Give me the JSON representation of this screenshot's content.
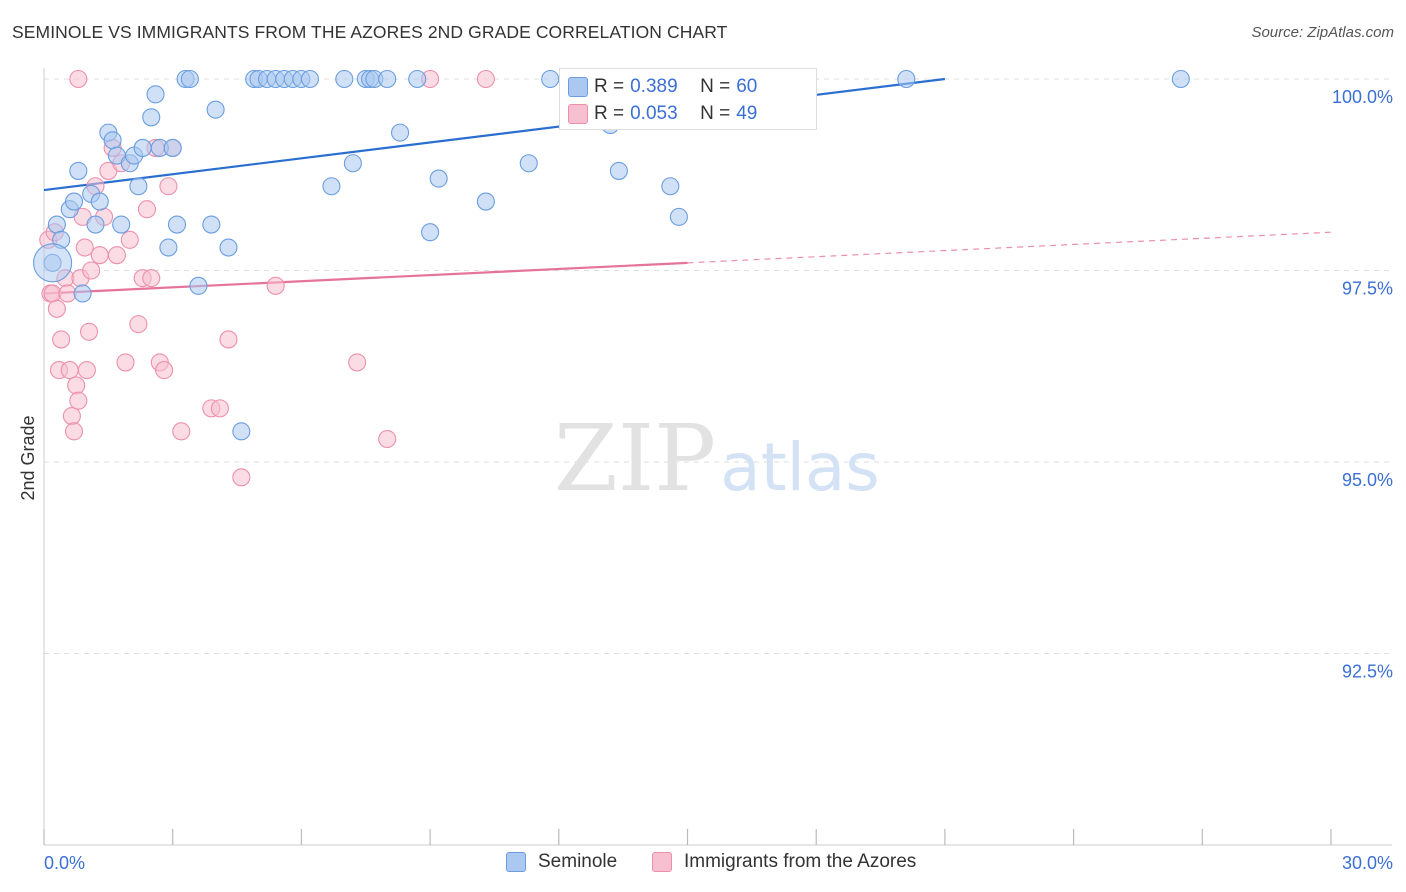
{
  "title": "SEMINOLE VS IMMIGRANTS FROM THE AZORES 2ND GRADE CORRELATION CHART",
  "source": "Source: ZipAtlas.com",
  "watermark": {
    "zip": "ZIP",
    "atlas": "atlas"
  },
  "stats": {
    "seminole": {
      "r_label": "R = ",
      "r_value": "0.389",
      "n_label": "N = ",
      "n_value": "60"
    },
    "azores": {
      "r_label": "R = ",
      "r_value": "0.053",
      "n_label": "N = ",
      "n_value": "49"
    }
  },
  "legend": {
    "seminole": "Seminole",
    "azores": "Immigrants from the Azores"
  },
  "chart_data": {
    "type": "scatter",
    "ylabel": "2nd Grade",
    "xlim": [
      0,
      30
    ],
    "ylim": [
      90.0,
      100.55
    ],
    "x_tick_labels": [
      {
        "value": 0,
        "label": "0.0%"
      },
      {
        "value": 30,
        "label": "30.0%"
      }
    ],
    "y_tick_labels": [
      {
        "value": 100.0,
        "label": "100.0%"
      },
      {
        "value": 97.5,
        "label": "97.5%"
      },
      {
        "value": 95.0,
        "label": "95.0%"
      },
      {
        "value": 92.5,
        "label": "92.5%"
      }
    ],
    "x_minor_ticks": [
      0,
      3,
      6,
      9,
      12,
      15,
      18,
      21,
      24,
      27,
      30
    ],
    "grid": true,
    "colors": {
      "seminole_fill": "#aac8f0",
      "seminole_stroke": "#6a9ee0",
      "seminole_line": "#2a6fd0",
      "azores_fill": "#f7c0d0",
      "azores_stroke": "#ec90ac",
      "azores_line": "#e5739a",
      "grid": "#dddddd",
      "tick_label": "#3b6fd4"
    },
    "series": [
      {
        "name": "Seminole",
        "color": "#aac8f0",
        "points": [
          [
            0.2,
            97.6
          ],
          [
            0.3,
            98.1
          ],
          [
            0.4,
            97.9
          ],
          [
            0.6,
            98.3
          ],
          [
            0.7,
            98.4
          ],
          [
            0.8,
            98.8
          ],
          [
            0.9,
            97.2
          ],
          [
            1.1,
            98.5
          ],
          [
            1.2,
            98.1
          ],
          [
            1.3,
            98.4
          ],
          [
            1.5,
            99.3
          ],
          [
            1.6,
            99.2
          ],
          [
            1.7,
            99.0
          ],
          [
            1.8,
            98.1
          ],
          [
            2.0,
            98.9
          ],
          [
            2.1,
            99.0
          ],
          [
            2.2,
            98.6
          ],
          [
            2.3,
            99.1
          ],
          [
            2.5,
            99.5
          ],
          [
            2.6,
            99.8
          ],
          [
            2.7,
            99.1
          ],
          [
            2.9,
            97.8
          ],
          [
            3.0,
            99.1
          ],
          [
            3.1,
            98.1
          ],
          [
            3.3,
            100.0
          ],
          [
            3.4,
            100.0
          ],
          [
            3.6,
            97.3
          ],
          [
            3.9,
            98.1
          ],
          [
            4.0,
            99.6
          ],
          [
            4.3,
            97.8
          ],
          [
            4.6,
            95.4
          ],
          [
            4.9,
            100.0
          ],
          [
            5.0,
            100.0
          ],
          [
            5.2,
            100.0
          ],
          [
            5.4,
            100.0
          ],
          [
            5.6,
            100.0
          ],
          [
            5.8,
            100.0
          ],
          [
            6.0,
            100.0
          ],
          [
            6.2,
            100.0
          ],
          [
            6.7,
            98.6
          ],
          [
            7.0,
            100.0
          ],
          [
            7.2,
            98.9
          ],
          [
            7.5,
            100.0
          ],
          [
            7.6,
            100.0
          ],
          [
            7.7,
            100.0
          ],
          [
            8.0,
            100.0
          ],
          [
            8.3,
            99.3
          ],
          [
            8.7,
            100.0
          ],
          [
            9.0,
            98.0
          ],
          [
            9.2,
            98.7
          ],
          [
            10.3,
            98.4
          ],
          [
            11.3,
            98.9
          ],
          [
            11.8,
            100.0
          ],
          [
            13.2,
            99.4
          ],
          [
            13.4,
            98.8
          ],
          [
            14.6,
            98.6
          ],
          [
            14.8,
            98.2
          ],
          [
            16.8,
            100.0
          ],
          [
            20.1,
            100.0
          ],
          [
            26.5,
            100.0
          ]
        ]
      },
      {
        "name": "Immigrants from the Azores",
        "color": "#f7c0d0",
        "points": [
          [
            0.1,
            97.9
          ],
          [
            0.15,
            97.2
          ],
          [
            0.2,
            97.2
          ],
          [
            0.25,
            98.0
          ],
          [
            0.3,
            97.0
          ],
          [
            0.35,
            96.2
          ],
          [
            0.4,
            96.6
          ],
          [
            0.5,
            97.4
          ],
          [
            0.55,
            97.2
          ],
          [
            0.6,
            96.2
          ],
          [
            0.65,
            95.6
          ],
          [
            0.7,
            95.4
          ],
          [
            0.75,
            96.0
          ],
          [
            0.8,
            95.8
          ],
          [
            0.85,
            97.4
          ],
          [
            0.9,
            98.2
          ],
          [
            0.95,
            97.8
          ],
          [
            1.0,
            96.2
          ],
          [
            1.05,
            96.7
          ],
          [
            1.1,
            97.5
          ],
          [
            1.2,
            98.6
          ],
          [
            1.3,
            97.7
          ],
          [
            1.4,
            98.2
          ],
          [
            1.5,
            98.8
          ],
          [
            1.6,
            99.1
          ],
          [
            1.7,
            97.7
          ],
          [
            1.8,
            98.9
          ],
          [
            1.9,
            96.3
          ],
          [
            2.0,
            97.9
          ],
          [
            2.2,
            96.8
          ],
          [
            2.3,
            97.4
          ],
          [
            2.4,
            98.3
          ],
          [
            2.5,
            97.4
          ],
          [
            2.6,
            99.1
          ],
          [
            2.7,
            96.3
          ],
          [
            2.8,
            96.2
          ],
          [
            2.9,
            98.6
          ],
          [
            3.0,
            99.1
          ],
          [
            3.2,
            95.4
          ],
          [
            3.9,
            95.7
          ],
          [
            4.1,
            95.7
          ],
          [
            4.3,
            96.6
          ],
          [
            4.6,
            94.8
          ],
          [
            5.4,
            97.3
          ],
          [
            7.3,
            96.3
          ],
          [
            8.0,
            95.3
          ],
          [
            9.0,
            100.0
          ],
          [
            10.3,
            100.0
          ],
          [
            0.8,
            100.0
          ]
        ]
      }
    ],
    "trend_lines": [
      {
        "series": "Seminole",
        "start": [
          0,
          98.55
        ],
        "end": [
          21.0,
          100.0
        ]
      },
      {
        "series": "Immigrants from the Azores",
        "start": [
          0,
          97.2
        ],
        "end": [
          15.0,
          97.6
        ],
        "dashed_to": [
          30.0,
          98.0
        ]
      }
    ]
  }
}
